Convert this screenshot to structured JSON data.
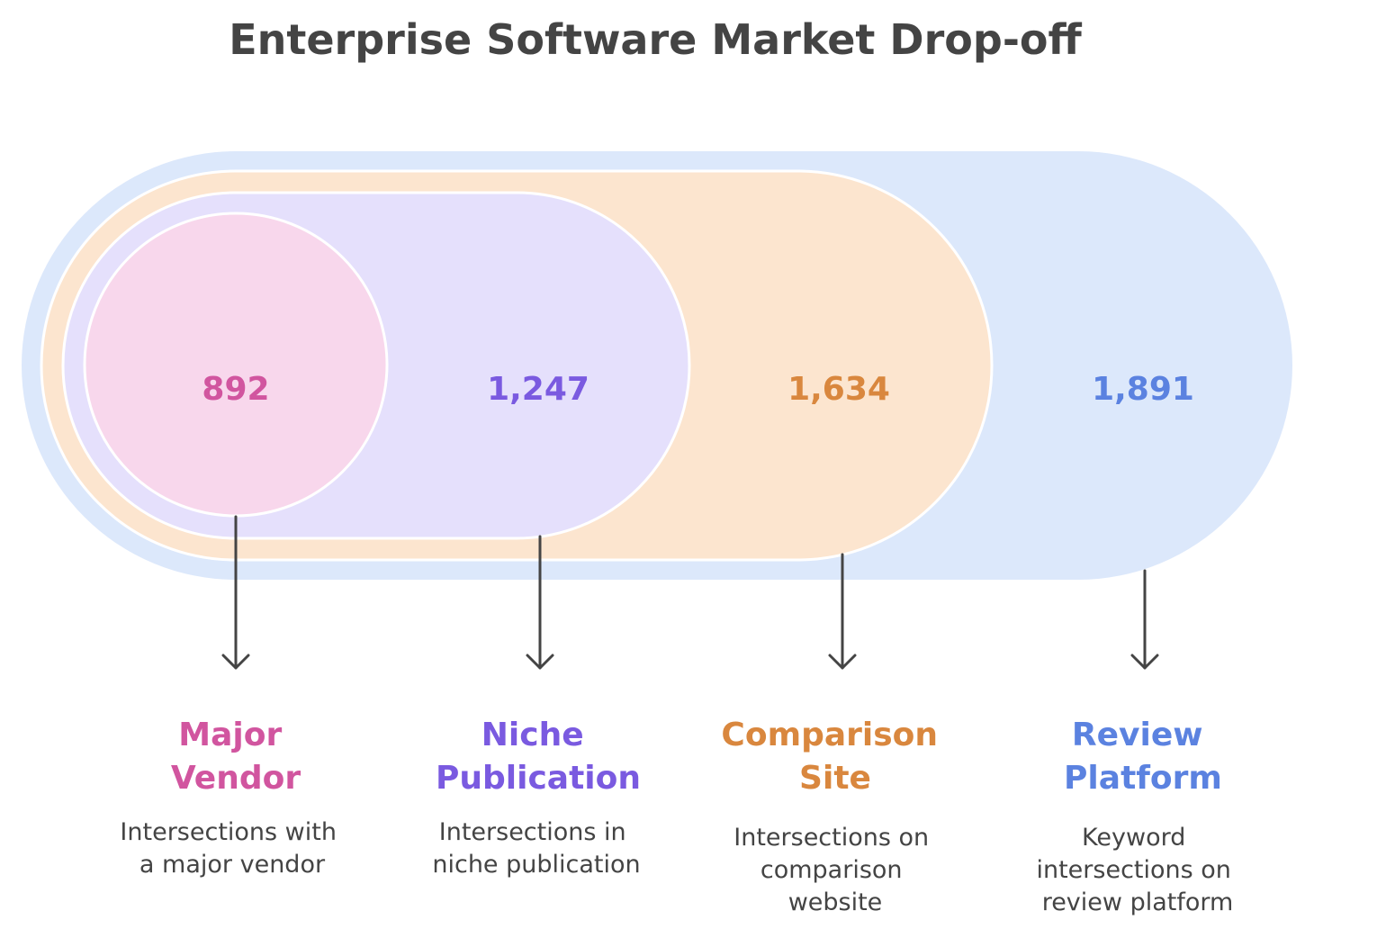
{
  "title": "Enterprise Software Market Drop-off",
  "stages": [
    {
      "value": "892",
      "label_lines": [
        "Major",
        "Vendor"
      ],
      "desc_lines": [
        "Intersections with",
        "a major vendor"
      ],
      "color": "#d1559f",
      "fill": "#f8d7ec"
    },
    {
      "value": "1,247",
      "label_lines": [
        "Niche",
        "Publication"
      ],
      "desc_lines": [
        "Intersections in",
        "niche publication"
      ],
      "color": "#7a5ae0",
      "fill": "#e5e0fc"
    },
    {
      "value": "1,634",
      "label_lines": [
        "Comparison",
        "Site"
      ],
      "desc_lines": [
        "Intersections on",
        "comparison",
        "website"
      ],
      "color": "#d9873e",
      "fill": "#fce5cf"
    },
    {
      "value": "1,891",
      "label_lines": [
        "Review",
        "Platform"
      ],
      "desc_lines": [
        "Keyword",
        "intersections on",
        "review platform"
      ],
      "color": "#5b82e0",
      "fill": "#dce8fb"
    }
  ],
  "colors": {
    "arrow": "#444444",
    "outline": "#ffffff",
    "title": "#444444"
  }
}
